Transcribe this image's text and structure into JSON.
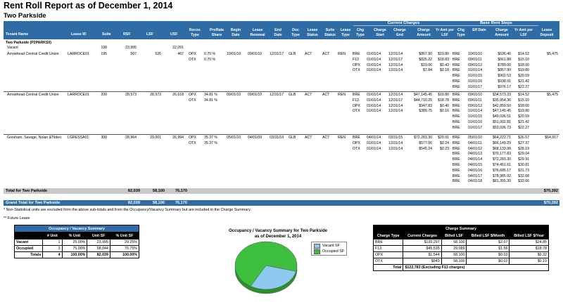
{
  "report": {
    "title": "Rent Roll Report as of December 1, 2014",
    "property": "Two Parkside"
  },
  "header": {
    "current_group": "Current Charges",
    "steps_group": "Base Rent Steps",
    "columns": {
      "tenant": "Tenant Name",
      "lease_id": "Lease ID",
      "suite": "Suite",
      "rsf": "RSF",
      "lsf": "LSF",
      "usf": "USF",
      "recov": "Recov. Type",
      "prorata": "ProRata Share",
      "begin": "Begin Date",
      "renewal": "Lease Renewal",
      "end": "End Date",
      "doc": "Doc Type",
      "lstatus": "Lease Status",
      "sstatus": "Suite Status",
      "ltype": "Lease Type",
      "chg": "Chg Type",
      "cstart": "Charge Start",
      "cend": "Charge End",
      "camt": "Charge Amount",
      "yramt": "Yr Amt per LSF",
      "schg": "Chg Type",
      "seff": "Eff Date",
      "samt": "Charge Amount",
      "syr": "Yr Amt per LSF",
      "deposit": "Lease Deposit"
    }
  },
  "property_label": "Two Parkside (P2PARKSI/)",
  "vacant": {
    "name": "Vacant",
    "suite": "100",
    "rsf": "23,995",
    "usf": "22,091"
  },
  "tenants": [
    {
      "name": "Arrowhead Central Credit Union",
      "lease_id": "LARROCE01",
      "suite": "195",
      "rsf": "507",
      "lsf": "526",
      "usf": "467",
      "recov": [
        {
          "type": "OPX",
          "share": "0.70 %"
        },
        {
          "type": "OTX",
          "share": "0.70 %"
        }
      ],
      "begin": "10/01/10",
      "renewal": "09/01/10",
      "end": "12/31/17",
      "doc": "GLB",
      "lstatus": "ACT",
      "sstatus": "ACT",
      "ltype": "REN",
      "charges": [
        {
          "chg": "BRE",
          "start": "01/01/14",
          "end": "12/31/14",
          "amt": "$867.90",
          "yr": "$19.80"
        },
        {
          "chg": "F13",
          "start": "01/01/14",
          "end": "12/31/17",
          "amt": "$825.22",
          "yr": "$18.83"
        },
        {
          "chg": "OPX",
          "start": "01/01/14",
          "end": "12/31/14",
          "amt": "$19.06",
          "yr": "$0.43"
        },
        {
          "chg": "OTX",
          "start": "01/01/14",
          "end": "12/31/14",
          "amt": "$7.84",
          "yr": "$0.18"
        }
      ],
      "steps": [
        {
          "chg": "BRE",
          "eff": "10/01/10",
          "amt": "$636.46",
          "yr": "$14.52"
        },
        {
          "chg": "BRE",
          "eff": "09/01/11",
          "amt": "$661.88",
          "yr": "$15.10"
        },
        {
          "chg": "BRE",
          "eff": "09/01/12",
          "amt": "$789.00",
          "yr": "$18.00"
        },
        {
          "chg": "BRE",
          "eff": "01/01/14",
          "amt": "$867.90",
          "yr": "$19.80"
        },
        {
          "chg": "BRE",
          "eff": "01/01/15",
          "amt": "$902.53",
          "yr": "$20.59"
        },
        {
          "chg": "BRE",
          "eff": "01/01/16",
          "amt": "$938.91",
          "yr": "$21.42"
        },
        {
          "chg": "BRE",
          "eff": "01/01/17",
          "amt": "$976.17",
          "yr": "$22.27"
        }
      ],
      "deposit": "$5,475"
    },
    {
      "name": "Arrowhead Central Credit Union",
      "lease_id": "LARROCE01",
      "suite": "200",
      "rsf": "28,573",
      "lsf": "28,573",
      "usf": "26,618",
      "recov": [
        {
          "type": "OPX",
          "share": "34.81 %"
        },
        {
          "type": "OTX",
          "share": "34.81 %"
        }
      ],
      "begin": "09/01/10",
      "renewal": "09/01/10",
      "end": "12/31/17",
      "doc": "GLB",
      "lstatus": "ACT",
      "sstatus": "ACT",
      "ltype": "REN",
      "charges": [
        {
          "chg": "BRE",
          "start": "01/01/14",
          "end": "12/31/14",
          "amt": "$47,145.45",
          "yr": "$19.80"
        },
        {
          "chg": "F13",
          "start": "01/01/14",
          "end": "12/31/17",
          "amt": "$44,710.25",
          "yr": "$18.78"
        },
        {
          "chg": "OPX",
          "start": "01/01/14",
          "end": "12/31/14",
          "amt": "$947.83",
          "yr": "$0.40"
        },
        {
          "chg": "OTX",
          "start": "01/01/14",
          "end": "12/31/14",
          "amt": "$389.75",
          "yr": "$0.16"
        }
      ],
      "steps": [
        {
          "chg": "BRE",
          "eff": "09/01/10",
          "amt": "$34,573.33",
          "yr": "$14.52"
        },
        {
          "chg": "BRE",
          "eff": "09/01/11",
          "amt": "$35,954.36",
          "yr": "$15.10"
        },
        {
          "chg": "BRE",
          "eff": "09/01/12",
          "amt": "$42,859.50",
          "yr": "$18.00"
        },
        {
          "chg": "BRE",
          "eff": "01/01/14",
          "amt": "$47,145.45",
          "yr": "$19.80"
        },
        {
          "chg": "BRE",
          "eff": "01/01/15",
          "amt": "$49,026.51",
          "yr": "$20.59"
        },
        {
          "chg": "BRE",
          "eff": "01/01/16",
          "amt": "$51,002.81",
          "yr": "$21.42"
        },
        {
          "chg": "BRE",
          "eff": "01/01/17",
          "amt": "$53,026.73",
          "yr": "$22.27"
        }
      ],
      "deposit": "$5,475"
    },
    {
      "name": "Gresham, Savage, Nolan &Tilden",
      "lease_id": "LGRESSA01",
      "suite": "300",
      "rsf": "28,964",
      "lsf": "29,001",
      "usf": "26,994",
      "recov": [
        {
          "type": "OPX",
          "share": "35.37 %"
        },
        {
          "type": "OTX",
          "share": "35.37 %"
        }
      ],
      "begin": "05/01/10",
      "renewal": "04/01/09",
      "end": "03/31/19",
      "doc": "GLB",
      "lstatus": "ACT",
      "sstatus": "ACT",
      "ltype": "REN",
      "charges": [
        {
          "chg": "BRE",
          "start": "04/01/14",
          "end": "03/31/15",
          "amt": "$72,283.30",
          "yr": "$29.91"
        },
        {
          "chg": "OPX",
          "start": "01/01/14",
          "end": "12/31/14",
          "amt": "$577.06",
          "yr": "$0.24"
        },
        {
          "chg": "OTX",
          "start": "01/01/14",
          "end": "12/31/14",
          "amt": "$545.24",
          "yr": "$0.23"
        }
      ],
      "steps": [
        {
          "chg": "BRE",
          "eff": "05/01/10",
          "amt": "$64,222.71",
          "yr": "$26.57"
        },
        {
          "chg": "BRE",
          "eff": "04/01/11",
          "amt": "$66,149.29",
          "yr": "$27.37"
        },
        {
          "chg": "BRE",
          "eff": "04/01/12",
          "amt": "$68,133.98",
          "yr": "$28.19"
        },
        {
          "chg": "BRE",
          "eff": "04/01/13",
          "amt": "$70,177.83",
          "yr": "$29.04"
        },
        {
          "chg": "BRE",
          "eff": "04/01/14",
          "amt": "$72,283.30",
          "yr": "$29.91"
        },
        {
          "chg": "BRE",
          "eff": "04/01/15",
          "amt": "$74,451.61",
          "yr": "$30.81"
        },
        {
          "chg": "BRE",
          "eff": "04/01/16",
          "amt": "$76,685.17",
          "yr": "$31.73"
        },
        {
          "chg": "BRE",
          "eff": "04/01/17",
          "amt": "$78,985.92",
          "yr": "$32.68"
        },
        {
          "chg": "BRE",
          "eff": "04/01/18",
          "amt": "$81,355.30",
          "yr": "$33.66"
        }
      ],
      "deposit": "$64,917"
    }
  ],
  "totals": {
    "property_label": "Total for Two Parkside",
    "rsf": "82,039",
    "lsf": "58,100",
    "usf": "76,170",
    "deposit": "$70,392",
    "grand_label": "Grand Total for Two Parkside",
    "grand_rsf": "82,039",
    "grand_lsf": "58,100",
    "grand_usf": "76,170",
    "grand_deposit": "$70,392"
  },
  "notes": {
    "n1": "* Non-Statistical units are excluded from the above sub-totals and from the Occupancy/Vacancy Summary but are included in the Charge Summary.",
    "n2": "** Future Lease"
  },
  "occupancy": {
    "title": "Occupancy / Vacancy Summary",
    "headers": [
      "",
      "# Unit",
      "% Unit",
      "Unit SF",
      "% Unit SF"
    ],
    "rows": [
      {
        "label": "Vacant",
        "units": "1",
        "pct_unit": "25.00%",
        "sf": "23,995",
        "pct_sf": "29.25%"
      },
      {
        "label": "Occupied",
        "units": "3",
        "pct_unit": "75.00%",
        "sf": "58,044",
        "pct_sf": "70.75%"
      }
    ],
    "total": {
      "label": "Totals",
      "units": "4",
      "pct_unit": "100.00%",
      "sf": "82,039",
      "pct_sf": "100.00%"
    }
  },
  "chart_data": {
    "type": "pie",
    "title": "Occupancy / Vacancy Summary for Two Parkside as of December 1, 2014",
    "title_line1": "Occupancy / Vacancy Summary for Two Parkside",
    "title_line2": "as of December 1, 2014",
    "categories": [
      "Vacant SF",
      "Occupied SF"
    ],
    "values": [
      23995,
      58044
    ],
    "colors": [
      "#8EC9EF",
      "#3DBE3D"
    ],
    "legend_position": "right"
  },
  "charge_summary": {
    "title": "Charge Summary",
    "headers": [
      "Charge Type",
      "Current Charges",
      "Billed LSF",
      "Billed LSF $/Month",
      "Billed LSF $/Year"
    ],
    "rows": [
      {
        "type": "BRE",
        "current": "$120,297",
        "lsf": "58,100",
        "month": "$2.07",
        "year": "$24.85"
      },
      {
        "type": "F13",
        "current": "$45,535",
        "lsf": "29,099",
        "month": "$1.56",
        "year": "$18.78"
      },
      {
        "type": "OPX",
        "current": "$1,544",
        "lsf": "58,100",
        "month": "$0.03",
        "year": "$0.32"
      },
      {
        "type": "OTX",
        "current": "$943",
        "lsf": "58,100",
        "month": "$0.02",
        "year": "$0.19"
      }
    ],
    "total": {
      "label": "Total",
      "value": "$122,783 (Excluding F13 charges)"
    }
  }
}
